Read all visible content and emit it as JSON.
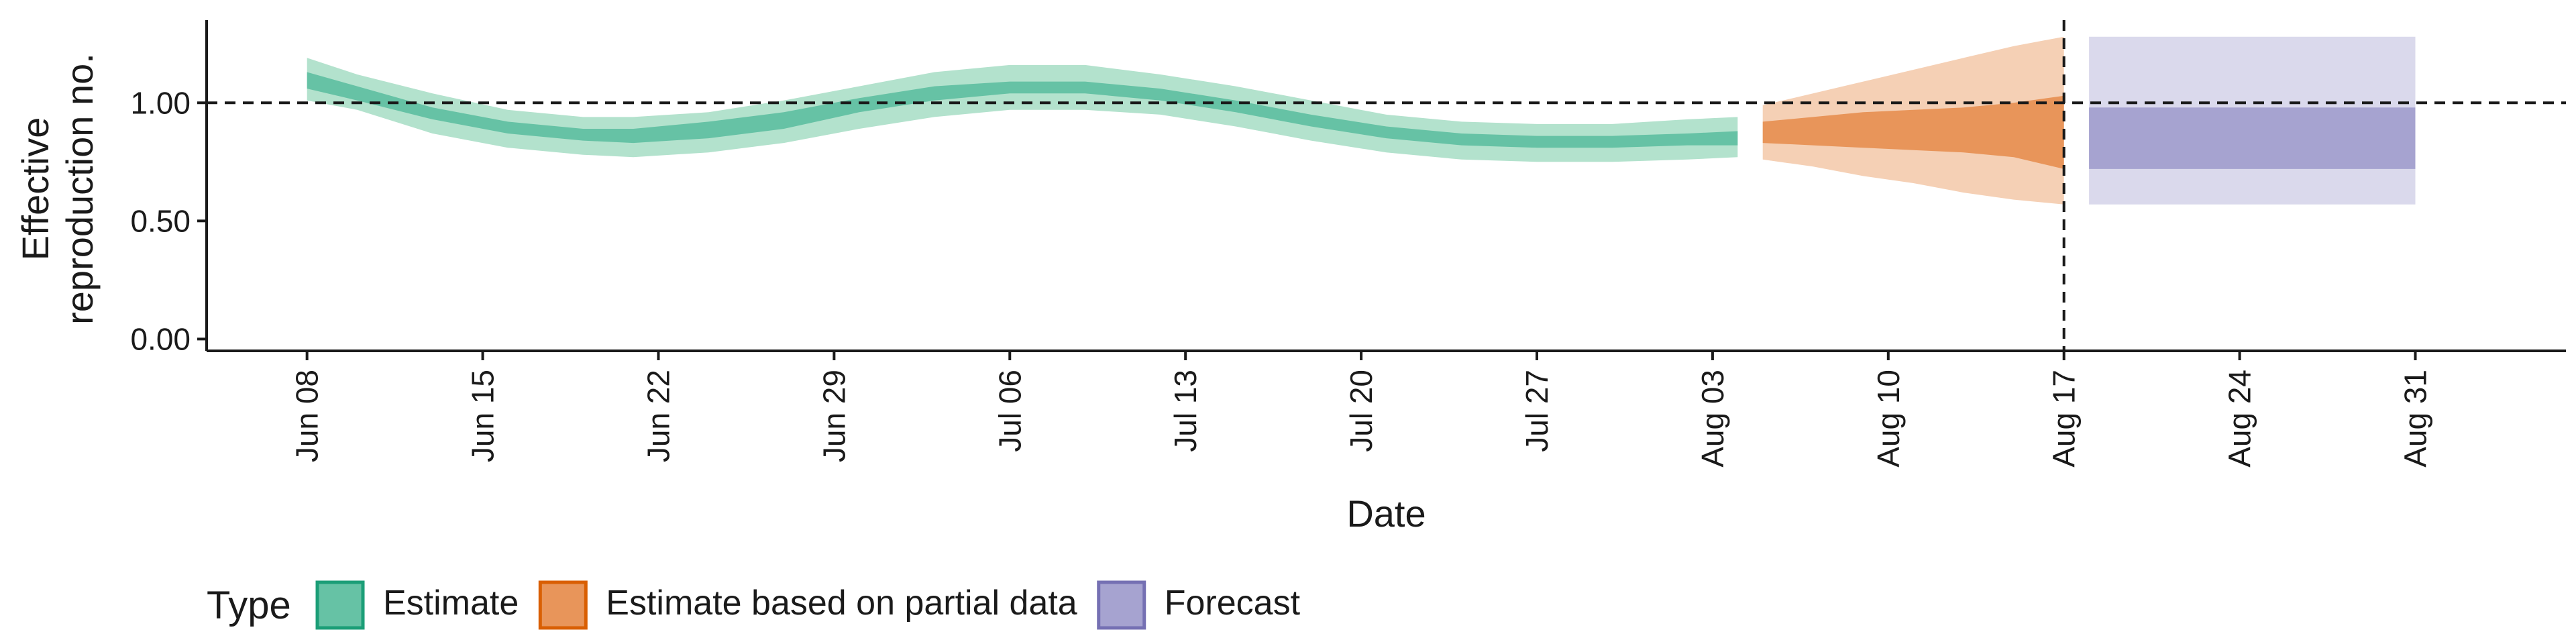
{
  "chart_data": {
    "type": "area",
    "xlabel": "Date",
    "ylabel_lines": [
      "Effective",
      "reproduction no."
    ],
    "x_start": "2020-06-08",
    "xlim": [
      "2020-06-04",
      "2020-09-06"
    ],
    "ylim": [
      -0.05,
      1.35
    ],
    "x_ticks": [
      {
        "date": "2020-06-08",
        "label": "Jun 08"
      },
      {
        "date": "2020-06-15",
        "label": "Jun 15"
      },
      {
        "date": "2020-06-22",
        "label": "Jun 22"
      },
      {
        "date": "2020-06-29",
        "label": "Jun 29"
      },
      {
        "date": "2020-07-06",
        "label": "Jul 06"
      },
      {
        "date": "2020-07-13",
        "label": "Jul 13"
      },
      {
        "date": "2020-07-20",
        "label": "Jul 20"
      },
      {
        "date": "2020-07-27",
        "label": "Jul 27"
      },
      {
        "date": "2020-08-03",
        "label": "Aug 03"
      },
      {
        "date": "2020-08-10",
        "label": "Aug 10"
      },
      {
        "date": "2020-08-17",
        "label": "Aug 17"
      },
      {
        "date": "2020-08-24",
        "label": "Aug 24"
      },
      {
        "date": "2020-08-31",
        "label": "Aug 31"
      }
    ],
    "y_ticks": [
      {
        "value": 0.0,
        "label": "0.00"
      },
      {
        "value": 0.5,
        "label": "0.50"
      },
      {
        "value": 1.0,
        "label": "1.00"
      }
    ],
    "reference_line": {
      "y": 1.0,
      "style": "dashed"
    },
    "vertical_line": {
      "date": "2020-08-17",
      "style": "dashed"
    },
    "legend": {
      "title": "Type",
      "position": "bottom-left",
      "items": [
        {
          "label": "Estimate",
          "fill": "#66c2a5",
          "stroke": "#1b9e77"
        },
        {
          "label": "Estimate based on partial data",
          "fill": "#e8955a",
          "stroke": "#d95f02"
        },
        {
          "label": "Forecast",
          "fill": "#a6a3d0",
          "stroke": "#7570b3"
        }
      ]
    },
    "series": [
      {
        "name": "Estimate",
        "color_outer": "#b3e2cd",
        "color_inner": "#66c2a5",
        "x": [
          "2020-06-08",
          "2020-06-10",
          "2020-06-13",
          "2020-06-16",
          "2020-06-19",
          "2020-06-21",
          "2020-06-24",
          "2020-06-27",
          "2020-06-30",
          "2020-07-03",
          "2020-07-06",
          "2020-07-09",
          "2020-07-12",
          "2020-07-15",
          "2020-07-18",
          "2020-07-21",
          "2020-07-24",
          "2020-07-27",
          "2020-07-30",
          "2020-08-02",
          "2020-08-04"
        ],
        "lower90": [
          1.01,
          0.97,
          0.87,
          0.81,
          0.78,
          0.77,
          0.79,
          0.83,
          0.89,
          0.94,
          0.97,
          0.97,
          0.95,
          0.9,
          0.84,
          0.79,
          0.76,
          0.75,
          0.75,
          0.76,
          0.77
        ],
        "lower50": [
          1.06,
          1.01,
          0.93,
          0.87,
          0.84,
          0.83,
          0.85,
          0.89,
          0.96,
          1.01,
          1.04,
          1.04,
          1.01,
          0.96,
          0.9,
          0.85,
          0.82,
          0.81,
          0.81,
          0.82,
          0.82
        ],
        "upper50": [
          1.13,
          1.07,
          0.98,
          0.92,
          0.89,
          0.89,
          0.92,
          0.96,
          1.02,
          1.07,
          1.09,
          1.09,
          1.06,
          1.01,
          0.95,
          0.9,
          0.87,
          0.86,
          0.86,
          0.87,
          0.88
        ],
        "upper90": [
          1.19,
          1.12,
          1.04,
          0.97,
          0.94,
          0.94,
          0.96,
          1.01,
          1.07,
          1.13,
          1.16,
          1.16,
          1.12,
          1.07,
          1.01,
          0.95,
          0.92,
          0.91,
          0.91,
          0.93,
          0.94
        ]
      },
      {
        "name": "Estimate based on partial data",
        "color_outer": "#f5d0b5",
        "color_inner": "#e8955a",
        "x": [
          "2020-08-05",
          "2020-08-07",
          "2020-08-09",
          "2020-08-11",
          "2020-08-13",
          "2020-08-15",
          "2020-08-17"
        ],
        "lower90": [
          0.76,
          0.73,
          0.69,
          0.66,
          0.62,
          0.59,
          0.57
        ],
        "lower50": [
          0.83,
          0.82,
          0.81,
          0.8,
          0.79,
          0.77,
          0.72
        ],
        "upper50": [
          0.92,
          0.94,
          0.96,
          0.97,
          0.98,
          1.0,
          1.03
        ],
        "upper90": [
          0.99,
          1.04,
          1.09,
          1.14,
          1.19,
          1.24,
          1.28
        ]
      },
      {
        "name": "Forecast",
        "color_outer": "#dad9ec",
        "color_inner": "#a6a3d0",
        "x": [
          "2020-08-18",
          "2020-08-31"
        ],
        "lower90": [
          0.57,
          0.57
        ],
        "lower50": [
          0.72,
          0.72
        ],
        "upper50": [
          0.98,
          0.98
        ],
        "upper90": [
          1.28,
          1.28
        ]
      }
    ]
  }
}
